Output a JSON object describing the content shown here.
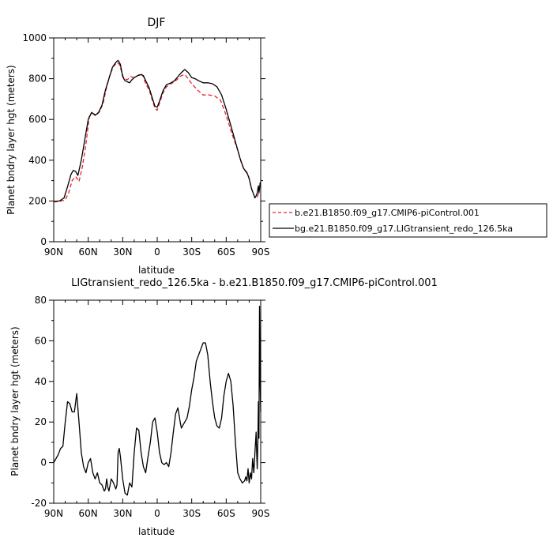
{
  "chart_data": [
    {
      "type": "line",
      "title": "DJF",
      "xlabel": "latitude",
      "ylabel": "Planet bndry layer hgt (meters)",
      "xlim": [
        90,
        -90
      ],
      "ylim": [
        0,
        1000
      ],
      "x_ticks": [
        {
          "value": 90,
          "label": "90N"
        },
        {
          "value": 60,
          "label": "60N"
        },
        {
          "value": 30,
          "label": "30N"
        },
        {
          "value": 0,
          "label": "0"
        },
        {
          "value": -30,
          "label": "30S"
        },
        {
          "value": -60,
          "label": "60S"
        },
        {
          "value": -90,
          "label": "90S"
        }
      ],
      "y_ticks": [
        0,
        200,
        400,
        600,
        800,
        1000
      ],
      "legend_placement": "right",
      "series": [
        {
          "name": "b.e21.B1850.f09_g17.CMIP6-piControl.001",
          "color": "#e8202a",
          "dash": "dashed",
          "points": [
            [
              90,
              195
            ],
            [
              85,
              198
            ],
            [
              80,
              205
            ],
            [
              77,
              240
            ],
            [
              74,
              300
            ],
            [
              71,
              320
            ],
            [
              68,
              295
            ],
            [
              65,
              370
            ],
            [
              62,
              480
            ],
            [
              59,
              615
            ],
            [
              56,
              630
            ],
            [
              53,
              620
            ],
            [
              50,
              640
            ],
            [
              47,
              680
            ],
            [
              44,
              760
            ],
            [
              41,
              820
            ],
            [
              38,
              860
            ],
            [
              35,
              880
            ],
            [
              33,
              870
            ],
            [
              31,
              835
            ],
            [
              29,
              800
            ],
            [
              26,
              795
            ],
            [
              23,
              810
            ],
            [
              20,
              805
            ],
            [
              17,
              815
            ],
            [
              14,
              825
            ],
            [
              12,
              810
            ],
            [
              10,
              775
            ],
            [
              7,
              745
            ],
            [
              4,
              690
            ],
            [
              2,
              655
            ],
            [
              0,
              645
            ],
            [
              -2,
              680
            ],
            [
              -5,
              730
            ],
            [
              -8,
              760
            ],
            [
              -12,
              775
            ],
            [
              -15,
              785
            ],
            [
              -18,
              800
            ],
            [
              -21,
              815
            ],
            [
              -24,
              820
            ],
            [
              -27,
              800
            ],
            [
              -30,
              775
            ],
            [
              -35,
              745
            ],
            [
              -40,
              720
            ],
            [
              -45,
              720
            ],
            [
              -50,
              715
            ],
            [
              -55,
              695
            ],
            [
              -60,
              620
            ],
            [
              -65,
              530
            ],
            [
              -70,
              450
            ],
            [
              -73,
              390
            ],
            [
              -76,
              350
            ],
            [
              -79,
              330
            ],
            [
              -82,
              260
            ],
            [
              -85,
              215
            ],
            [
              -87,
              220
            ],
            [
              -88,
              235
            ],
            [
              -90,
              230
            ]
          ]
        },
        {
          "name": "bg.e21.B1850.f09_g17.LIGtransient_redo_126.5ka",
          "color": "#000000",
          "dash": "solid",
          "points": [
            [
              90,
              198
            ],
            [
              85,
              200
            ],
            [
              81,
              215
            ],
            [
              78,
              270
            ],
            [
              75,
              330
            ],
            [
              73,
              350
            ],
            [
              71,
              345
            ],
            [
              69,
              325
            ],
            [
              66,
              400
            ],
            [
              63,
              500
            ],
            [
              60,
              600
            ],
            [
              57,
              635
            ],
            [
              54,
              620
            ],
            [
              51,
              635
            ],
            [
              48,
              670
            ],
            [
              45,
              745
            ],
            [
              42,
              800
            ],
            [
              39,
              855
            ],
            [
              36,
              880
            ],
            [
              34,
              890
            ],
            [
              32,
              870
            ],
            [
              30,
              810
            ],
            [
              28,
              790
            ],
            [
              26,
              785
            ],
            [
              24,
              780
            ],
            [
              22,
              795
            ],
            [
              20,
              805
            ],
            [
              17,
              815
            ],
            [
              14,
              820
            ],
            [
              12,
              815
            ],
            [
              10,
              790
            ],
            [
              7,
              755
            ],
            [
              4,
              700
            ],
            [
              2,
              665
            ],
            [
              0,
              660
            ],
            [
              -2,
              690
            ],
            [
              -5,
              740
            ],
            [
              -8,
              770
            ],
            [
              -12,
              780
            ],
            [
              -15,
              790
            ],
            [
              -18,
              810
            ],
            [
              -21,
              830
            ],
            [
              -24,
              845
            ],
            [
              -27,
              830
            ],
            [
              -30,
              805
            ],
            [
              -33,
              800
            ],
            [
              -36,
              790
            ],
            [
              -40,
              780
            ],
            [
              -44,
              780
            ],
            [
              -48,
              775
            ],
            [
              -52,
              760
            ],
            [
              -56,
              720
            ],
            [
              -60,
              650
            ],
            [
              -64,
              570
            ],
            [
              -68,
              490
            ],
            [
              -72,
              410
            ],
            [
              -75,
              360
            ],
            [
              -78,
              340
            ],
            [
              -80,
              310
            ],
            [
              -82,
              260
            ],
            [
              -84,
              230
            ],
            [
              -85,
              215
            ],
            [
              -86,
              225
            ],
            [
              -87,
              240
            ],
            [
              -88,
              275
            ],
            [
              -88.5,
              240
            ],
            [
              -89,
              260
            ],
            [
              -89.5,
              290
            ],
            [
              -90,
              285
            ]
          ]
        }
      ]
    },
    {
      "type": "line",
      "title": "LIGtransient_redo_126.5ka - b.e21.B1850.f09_g17.CMIP6-piControl.001",
      "xlabel": "latitude",
      "ylabel": "Planet bndry layer hgt (meters)",
      "xlim": [
        90,
        -90
      ],
      "ylim": [
        -20,
        80
      ],
      "x_ticks": [
        {
          "value": 90,
          "label": "90N"
        },
        {
          "value": 60,
          "label": "60N"
        },
        {
          "value": 30,
          "label": "30N"
        },
        {
          "value": 0,
          "label": "0"
        },
        {
          "value": -30,
          "label": "30S"
        },
        {
          "value": -60,
          "label": "60S"
        },
        {
          "value": -90,
          "label": "90S"
        }
      ],
      "y_ticks": [
        -20,
        0,
        20,
        40,
        60,
        80
      ],
      "series": [
        {
          "color": "#000000",
          "dash": "solid",
          "points": [
            [
              90,
              0
            ],
            [
              88,
              2
            ],
            [
              86,
              4
            ],
            [
              84,
              7
            ],
            [
              82,
              8
            ],
            [
              80,
              20
            ],
            [
              78,
              30
            ],
            [
              76,
              29
            ],
            [
              74,
              25
            ],
            [
              72,
              25
            ],
            [
              70,
              34
            ],
            [
              68,
              20
            ],
            [
              66,
              5
            ],
            [
              64,
              -2
            ],
            [
              62,
              -5
            ],
            [
              60,
              0
            ],
            [
              58,
              2
            ],
            [
              56,
              -5
            ],
            [
              54,
              -8
            ],
            [
              52,
              -5
            ],
            [
              50,
              -10
            ],
            [
              48,
              -11
            ],
            [
              46,
              -14
            ],
            [
              45,
              -13
            ],
            [
              44,
              -8
            ],
            [
              43,
              -12
            ],
            [
              42,
              -14
            ],
            [
              40,
              -8
            ],
            [
              38,
              -10
            ],
            [
              36,
              -13
            ],
            [
              35,
              -11
            ],
            [
              34,
              5
            ],
            [
              33,
              7
            ],
            [
              32,
              3
            ],
            [
              30,
              -8
            ],
            [
              28,
              -15
            ],
            [
              26,
              -16
            ],
            [
              24,
              -10
            ],
            [
              22,
              -12
            ],
            [
              20,
              5
            ],
            [
              18,
              17
            ],
            [
              16,
              16
            ],
            [
              14,
              5
            ],
            [
              12,
              -2
            ],
            [
              10,
              -5
            ],
            [
              8,
              3
            ],
            [
              6,
              10
            ],
            [
              4,
              20
            ],
            [
              2,
              22
            ],
            [
              0,
              15
            ],
            [
              -2,
              5
            ],
            [
              -4,
              0
            ],
            [
              -6,
              -1
            ],
            [
              -8,
              0
            ],
            [
              -10,
              -2
            ],
            [
              -12,
              5
            ],
            [
              -14,
              15
            ],
            [
              -16,
              24
            ],
            [
              -18,
              27
            ],
            [
              -20,
              20
            ],
            [
              -21,
              17
            ],
            [
              -22,
              18
            ],
            [
              -24,
              20
            ],
            [
              -26,
              22
            ],
            [
              -28,
              28
            ],
            [
              -30,
              36
            ],
            [
              -32,
              42
            ],
            [
              -34,
              50
            ],
            [
              -36,
              53
            ],
            [
              -38,
              56
            ],
            [
              -40,
              59
            ],
            [
              -42,
              59
            ],
            [
              -44,
              53
            ],
            [
              -46,
              40
            ],
            [
              -48,
              30
            ],
            [
              -50,
              22
            ],
            [
              -52,
              18
            ],
            [
              -54,
              17
            ],
            [
              -56,
              22
            ],
            [
              -58,
              33
            ],
            [
              -60,
              40
            ],
            [
              -62,
              44
            ],
            [
              -64,
              40
            ],
            [
              -66,
              28
            ],
            [
              -68,
              10
            ],
            [
              -70,
              -5
            ],
            [
              -72,
              -8
            ],
            [
              -74,
              -10
            ],
            [
              -76,
              -9
            ],
            [
              -77,
              -7
            ],
            [
              -78,
              -9
            ],
            [
              -79,
              -3
            ],
            [
              -80,
              -10
            ],
            [
              -81,
              -5
            ],
            [
              -82,
              -8
            ],
            [
              -83,
              2
            ],
            [
              -84,
              -5
            ],
            [
              -85,
              5
            ],
            [
              -86,
              15
            ],
            [
              -86.5,
              5
            ],
            [
              -87,
              -3
            ],
            [
              -87.5,
              10
            ],
            [
              -88,
              30
            ],
            [
              -88.5,
              12
            ],
            [
              -89,
              77
            ],
            [
              -89.5,
              40
            ],
            [
              -90,
              25
            ]
          ]
        }
      ]
    }
  ]
}
